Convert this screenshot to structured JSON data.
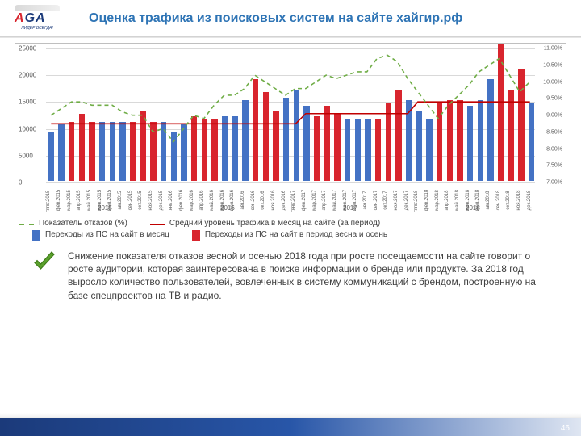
{
  "logo": {
    "text_parts": [
      "A",
      "G",
      "A"
    ],
    "subtitle": "ЛИДЕР ВСЕГДА!"
  },
  "title": {
    "text": "Оценка трафика из поисковых систем на сайте хайгир.рф",
    "color": "#2e74b5"
  },
  "chart": {
    "type": "bar+line",
    "background_color": "#ffffff",
    "grid_color": "#d9d9d9",
    "left_axis": {
      "min": 0,
      "max": 25000,
      "step": 5000,
      "labels": [
        "0",
        "5000",
        "10000",
        "15000",
        "20000",
        "25000"
      ]
    },
    "right_axis": {
      "min": 7.0,
      "max": 11.0,
      "step": 0.5,
      "labels": [
        "7.00%",
        "7.50%",
        "8.00%",
        "8.50%",
        "9.00%",
        "9.50%",
        "10.00%",
        "10.50%",
        "11.00%"
      ]
    },
    "months": [
      "янв.2015",
      "фев.2015",
      "мар.2015",
      "апр.2015",
      "май.2015",
      "июн.2015",
      "июл.2015",
      "авг.2015",
      "сен.2015",
      "окт.2015",
      "ноя.2015",
      "дек.2015",
      "янв.2016",
      "фев.2016",
      "мар.2016",
      "апр.2016",
      "май.2016",
      "июн.2016",
      "июл.2016",
      "авг.2016",
      "сен.2016",
      "окт.2016",
      "ноя.2016",
      "дек.2016",
      "янв.2017",
      "фев.2017",
      "мар.2017",
      "апр.2017",
      "май.2017",
      "июн.2017",
      "июл.2017",
      "авг.2017",
      "сен.2017",
      "окт.2017",
      "ноя.2017",
      "дек.2017",
      "янв.2018",
      "фев.2018",
      "мар.2018",
      "апр.2018",
      "май.2018",
      "июн.2018",
      "июл.2018",
      "авг.2018",
      "сен.2018",
      "окт.2018",
      "ноя.2018",
      "дек.2018"
    ],
    "values": [
      9000,
      10500,
      11000,
      12500,
      11000,
      11000,
      11000,
      11000,
      11000,
      13000,
      11000,
      11000,
      9000,
      10500,
      12000,
      11500,
      11500,
      12000,
      12000,
      15000,
      19000,
      16500,
      13000,
      15500,
      17000,
      14000,
      12000,
      14000,
      12500,
      11500,
      11500,
      11500,
      11500,
      14500,
      17000,
      15000,
      13000,
      11500,
      14500,
      15000,
      15000,
      14000,
      15000,
      19000,
      25500,
      17000,
      21000,
      14500
    ],
    "bar_colors": [
      "#4472c4",
      "#4472c4",
      "#d8252e",
      "#d8252e",
      "#d8252e",
      "#4472c4",
      "#4472c4",
      "#4472c4",
      "#d8252e",
      "#d8252e",
      "#d8252e",
      "#4472c4",
      "#4472c4",
      "#4472c4",
      "#d8252e",
      "#d8252e",
      "#d8252e",
      "#4472c4",
      "#4472c4",
      "#4472c4",
      "#d8252e",
      "#d8252e",
      "#d8252e",
      "#4472c4",
      "#4472c4",
      "#4472c4",
      "#d8252e",
      "#d8252e",
      "#d8252e",
      "#4472c4",
      "#4472c4",
      "#4472c4",
      "#d8252e",
      "#d8252e",
      "#d8252e",
      "#4472c4",
      "#4472c4",
      "#4472c4",
      "#d8252e",
      "#d8252e",
      "#d8252e",
      "#4472c4",
      "#4472c4",
      "#4472c4",
      "#d8252e",
      "#d8252e",
      "#d8252e",
      "#4472c4"
    ],
    "dashed_line": {
      "color": "#70ad47",
      "values_pct": [
        9.0,
        9.2,
        9.4,
        9.4,
        9.3,
        9.3,
        9.3,
        9.1,
        9.0,
        9.0,
        8.5,
        8.6,
        8.2,
        8.6,
        9.0,
        8.9,
        9.3,
        9.6,
        9.6,
        9.8,
        10.2,
        10.0,
        9.8,
        9.6,
        9.8,
        9.8,
        10.0,
        10.2,
        10.1,
        10.2,
        10.3,
        10.3,
        10.7,
        10.8,
        10.6,
        10.1,
        9.7,
        9.3,
        8.9,
        9.3,
        9.6,
        9.9,
        10.3,
        10.5,
        10.7,
        10.2,
        9.7,
        10.0
      ]
    },
    "solid_line": {
      "color": "#c00000",
      "values": [
        10900,
        10900,
        10900,
        10900,
        10900,
        10900,
        10900,
        10900,
        10900,
        10900,
        10900,
        10900,
        10900,
        10900,
        10900,
        10900,
        10900,
        10900,
        10900,
        10900,
        10900,
        10900,
        10900,
        10900,
        10900,
        12800,
        12800,
        12800,
        12800,
        12800,
        12800,
        12800,
        12800,
        12800,
        12800,
        12800,
        15000,
        15000,
        15000,
        15000,
        15000,
        15000,
        15000,
        15000,
        15000,
        15000,
        15000,
        15000
      ]
    },
    "years": [
      {
        "label": "2015",
        "start": 0,
        "end": 12
      },
      {
        "label": "2016",
        "start": 12,
        "end": 24
      },
      {
        "label": "2017",
        "start": 24,
        "end": 36
      },
      {
        "label": "2018",
        "start": 36,
        "end": 48
      }
    ],
    "bar_width_ratio": 0.6
  },
  "legend": {
    "row1": [
      {
        "style": "dash",
        "text": "Показатель отказов (%)"
      },
      {
        "style": "line",
        "text": "Средний уровень трафика в месяц на сайте (за период)"
      }
    ],
    "row2": [
      {
        "style": "blue",
        "text": "Переходы  из ПС на сайт в месяц"
      },
      {
        "style": "red",
        "text": "Переходы из ПС на сайт в период весна и осень"
      }
    ]
  },
  "note": "Снижение показателя отказов весной и осенью 2018 года при росте посещаемости на сайте говорит о росте аудитории, которая заинтересована в поиске информации о бренде или продукте. За 2018 год выросло количество пользователей, вовлеченных в систему коммуникаций с брендом, построенную на базе спецпроектов на ТВ и радио.",
  "page_number": "46",
  "check_colors": {
    "fill": "#5aa02c",
    "border": "#3d7a17"
  }
}
